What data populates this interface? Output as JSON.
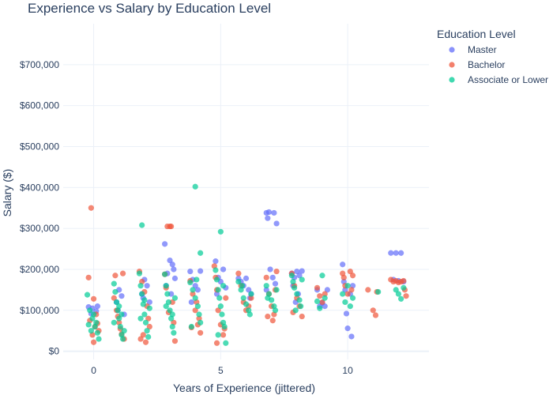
{
  "chart_data": {
    "type": "scatter",
    "title": "Experience vs Salary by Education Level",
    "xlabel": "Years of Experience (jittered)",
    "ylabel": "Salary ($)",
    "xlim": [
      -1.2,
      13.2
    ],
    "ylim": [
      -20000,
      800000
    ],
    "x_ticks": [
      0,
      5,
      10
    ],
    "x_tick_labels": [
      "0",
      "5",
      "10"
    ],
    "y_ticks": [
      0,
      100000,
      200000,
      300000,
      400000,
      500000,
      600000,
      700000
    ],
    "y_tick_labels": [
      "$0",
      "$100,000",
      "$200,000",
      "$300,000",
      "$400,000",
      "$500,000",
      "$600,000",
      "$700,000"
    ],
    "grid": true,
    "legend_title": "Education Level",
    "legend_position": "top-right",
    "series": [
      {
        "name": "Master",
        "color": "#636efa",
        "points": [
          [
            -0.2,
            108000
          ],
          [
            -0.05,
            105000
          ],
          [
            0.1,
            98000
          ],
          [
            0.15,
            110000
          ],
          [
            -0.1,
            92000
          ],
          [
            0.9,
            120000
          ],
          [
            1.1,
            135000
          ],
          [
            1.0,
            150000
          ],
          [
            0.95,
            100000
          ],
          [
            1.2,
            90000
          ],
          [
            1.9,
            140000
          ],
          [
            2.1,
            160000
          ],
          [
            2.0,
            175000
          ],
          [
            1.95,
            130000
          ],
          [
            2.2,
            120000
          ],
          [
            2.8,
            262000
          ],
          [
            3.0,
            222000
          ],
          [
            3.1,
            212000
          ],
          [
            2.9,
            190000
          ],
          [
            3.2,
            178000
          ],
          [
            2.85,
            160000
          ],
          [
            3.05,
            140000
          ],
          [
            3.15,
            200000
          ],
          [
            3.8,
            195000
          ],
          [
            3.9,
            175000
          ],
          [
            4.0,
            160000
          ],
          [
            4.1,
            150000
          ],
          [
            4.2,
            196000
          ],
          [
            3.85,
            120000
          ],
          [
            4.8,
            220000
          ],
          [
            4.9,
            180000
          ],
          [
            5.0,
            170000
          ],
          [
            5.1,
            200000
          ],
          [
            5.2,
            155000
          ],
          [
            4.85,
            140000
          ],
          [
            5.7,
            178000
          ],
          [
            5.8,
            170000
          ],
          [
            5.9,
            160000
          ],
          [
            6.0,
            178000
          ],
          [
            6.1,
            150000
          ],
          [
            6.2,
            140000
          ],
          [
            6.15,
            130000
          ],
          [
            6.8,
            338000
          ],
          [
            6.85,
            325000
          ],
          [
            6.9,
            340000
          ],
          [
            7.1,
            338000
          ],
          [
            7.2,
            312000
          ],
          [
            6.95,
            200000
          ],
          [
            7.05,
            180000
          ],
          [
            7.15,
            165000
          ],
          [
            6.8,
            150000
          ],
          [
            7.8,
            190000
          ],
          [
            7.9,
            180000
          ],
          [
            8.0,
            195000
          ],
          [
            8.1,
            185000
          ],
          [
            8.2,
            196000
          ],
          [
            7.85,
            160000
          ],
          [
            8.05,
            140000
          ],
          [
            7.95,
            120000
          ],
          [
            8.8,
            150000
          ],
          [
            8.9,
            110000
          ],
          [
            9.0,
            118000
          ],
          [
            9.1,
            110000
          ],
          [
            9.2,
            150000
          ],
          [
            9.8,
            212000
          ],
          [
            9.85,
            170000
          ],
          [
            9.9,
            150000
          ],
          [
            9.95,
            92000
          ],
          [
            10.0,
            56000
          ],
          [
            10.1,
            140000
          ],
          [
            10.15,
            36000
          ],
          [
            10.2,
            160000
          ],
          [
            11.7,
            240000
          ],
          [
            11.9,
            240000
          ],
          [
            12.1,
            240000
          ],
          [
            11.8,
            175000
          ],
          [
            12.0,
            172000
          ],
          [
            12.2,
            170000
          ]
        ]
      },
      {
        "name": "Bachelor",
        "color": "#ef553b",
        "points": [
          [
            -0.1,
            350000
          ],
          [
            -0.2,
            180000
          ],
          [
            0.0,
            128000
          ],
          [
            0.1,
            90000
          ],
          [
            -0.15,
            75000
          ],
          [
            0.05,
            60000
          ],
          [
            0.2,
            50000
          ],
          [
            -0.05,
            40000
          ],
          [
            0.0,
            22000
          ],
          [
            0.15,
            68000
          ],
          [
            0.8,
            130000
          ],
          [
            0.9,
            100000
          ],
          [
            1.0,
            70000
          ],
          [
            1.1,
            42000
          ],
          [
            1.2,
            30000
          ],
          [
            0.85,
            185000
          ],
          [
            1.15,
            190000
          ],
          [
            1.05,
            55000
          ],
          [
            0.95,
            85000
          ],
          [
            1.8,
            195000
          ],
          [
            1.9,
            170000
          ],
          [
            2.0,
            145000
          ],
          [
            2.1,
            110000
          ],
          [
            2.2,
            60000
          ],
          [
            1.85,
            30000
          ],
          [
            2.05,
            22000
          ],
          [
            2.15,
            80000
          ],
          [
            1.95,
            40000
          ],
          [
            2.8,
            188000
          ],
          [
            2.85,
            155000
          ],
          [
            2.9,
            305000
          ],
          [
            3.0,
            305000
          ],
          [
            3.05,
            305000
          ],
          [
            3.1,
            120000
          ],
          [
            3.15,
            70000
          ],
          [
            3.2,
            25000
          ],
          [
            2.95,
            95000
          ],
          [
            3.8,
            172000
          ],
          [
            3.9,
            140000
          ],
          [
            4.0,
            100000
          ],
          [
            4.1,
            65000
          ],
          [
            4.2,
            45000
          ],
          [
            3.85,
            58000
          ],
          [
            4.05,
            120000
          ],
          [
            4.15,
            80000
          ],
          [
            4.75,
            208000
          ],
          [
            4.8,
            180000
          ],
          [
            4.85,
            150000
          ],
          [
            4.9,
            100000
          ],
          [
            5.0,
            65000
          ],
          [
            5.1,
            40000
          ],
          [
            4.85,
            20000
          ],
          [
            5.2,
            130000
          ],
          [
            5.15,
            55000
          ],
          [
            5.7,
            190000
          ],
          [
            5.8,
            160000
          ],
          [
            5.9,
            120000
          ],
          [
            6.0,
            100000
          ],
          [
            6.1,
            110000
          ],
          [
            6.2,
            130000
          ],
          [
            6.8,
            180000
          ],
          [
            6.9,
            140000
          ],
          [
            7.0,
            110000
          ],
          [
            7.1,
            90000
          ],
          [
            7.2,
            195000
          ],
          [
            6.85,
            85000
          ],
          [
            7.05,
            75000
          ],
          [
            7.15,
            150000
          ],
          [
            7.8,
            190000
          ],
          [
            7.9,
            160000
          ],
          [
            8.0,
            130000
          ],
          [
            8.1,
            110000
          ],
          [
            8.2,
            85000
          ],
          [
            7.85,
            95000
          ],
          [
            8.8,
            155000
          ],
          [
            8.9,
            135000
          ],
          [
            9.0,
            120000
          ],
          [
            9.1,
            140000
          ],
          [
            9.8,
            190000
          ],
          [
            9.85,
            180000
          ],
          [
            9.9,
            160000
          ],
          [
            10.0,
            140000
          ],
          [
            10.1,
            195000
          ],
          [
            10.15,
            150000
          ],
          [
            10.2,
            185000
          ],
          [
            10.8,
            150000
          ],
          [
            11.0,
            100000
          ],
          [
            11.1,
            88000
          ],
          [
            11.15,
            145000
          ],
          [
            11.7,
            175000
          ],
          [
            11.8,
            170000
          ],
          [
            11.9,
            172000
          ],
          [
            12.0,
            168000
          ],
          [
            12.1,
            170000
          ],
          [
            12.2,
            172000
          ],
          [
            12.3,
            135000
          ],
          [
            12.25,
            150000
          ]
        ]
      },
      {
        "name": "Associate or Lower",
        "color": "#00cc96",
        "points": [
          [
            -0.25,
            138000
          ],
          [
            -0.15,
            100000
          ],
          [
            -0.05,
            80000
          ],
          [
            0.05,
            60000
          ],
          [
            0.15,
            45000
          ],
          [
            0.2,
            30000
          ],
          [
            -0.1,
            50000
          ],
          [
            0.1,
            70000
          ],
          [
            0.0,
            90000
          ],
          [
            -0.2,
            65000
          ],
          [
            0.8,
            165000
          ],
          [
            0.85,
            145000
          ],
          [
            0.9,
            120000
          ],
          [
            0.95,
            100000
          ],
          [
            1.0,
            80000
          ],
          [
            1.05,
            60000
          ],
          [
            1.1,
            40000
          ],
          [
            1.15,
            30000
          ],
          [
            1.2,
            50000
          ],
          [
            0.8,
            70000
          ],
          [
            1.0,
            110000
          ],
          [
            1.1,
            90000
          ],
          [
            1.9,
            308000
          ],
          [
            1.8,
            190000
          ],
          [
            1.85,
            160000
          ],
          [
            1.9,
            140000
          ],
          [
            1.95,
            115000
          ],
          [
            2.0,
            90000
          ],
          [
            2.05,
            70000
          ],
          [
            2.1,
            50000
          ],
          [
            2.15,
            35000
          ],
          [
            2.2,
            105000
          ],
          [
            1.85,
            80000
          ],
          [
            2.0,
            125000
          ],
          [
            2.8,
            188000
          ],
          [
            2.85,
            160000
          ],
          [
            2.9,
            140000
          ],
          [
            2.95,
            120000
          ],
          [
            3.0,
            100000
          ],
          [
            3.05,
            80000
          ],
          [
            3.1,
            60000
          ],
          [
            3.15,
            45000
          ],
          [
            3.2,
            130000
          ],
          [
            2.85,
            110000
          ],
          [
            3.1,
            90000
          ],
          [
            4.0,
            402000
          ],
          [
            4.2,
            240000
          ],
          [
            3.8,
            168000
          ],
          [
            3.9,
            150000
          ],
          [
            4.0,
            130000
          ],
          [
            4.1,
            110000
          ],
          [
            4.15,
            90000
          ],
          [
            4.2,
            70000
          ],
          [
            3.85,
            60000
          ],
          [
            4.05,
            175000
          ],
          [
            5.0,
            292000
          ],
          [
            4.8,
            198000
          ],
          [
            4.85,
            175000
          ],
          [
            4.9,
            150000
          ],
          [
            4.95,
            130000
          ],
          [
            5.0,
            110000
          ],
          [
            5.05,
            90000
          ],
          [
            5.1,
            70000
          ],
          [
            5.15,
            60000
          ],
          [
            5.2,
            20000
          ],
          [
            4.9,
            40000
          ],
          [
            5.1,
            160000
          ],
          [
            5.7,
            170000
          ],
          [
            5.8,
            150000
          ],
          [
            5.9,
            130000
          ],
          [
            6.0,
            115000
          ],
          [
            6.1,
            100000
          ],
          [
            6.15,
            90000
          ],
          [
            6.2,
            140000
          ],
          [
            5.85,
            160000
          ],
          [
            6.8,
            160000
          ],
          [
            6.9,
            140000
          ],
          [
            7.0,
            125000
          ],
          [
            7.1,
            110000
          ],
          [
            7.15,
            100000
          ],
          [
            7.2,
            150000
          ],
          [
            6.85,
            130000
          ],
          [
            7.8,
            185000
          ],
          [
            7.85,
            170000
          ],
          [
            7.9,
            155000
          ],
          [
            8.0,
            140000
          ],
          [
            8.1,
            125000
          ],
          [
            8.15,
            110000
          ],
          [
            8.2,
            175000
          ],
          [
            7.95,
            100000
          ],
          [
            8.8,
            122000
          ],
          [
            8.9,
            105000
          ],
          [
            9.0,
            185000
          ],
          [
            9.1,
            130000
          ],
          [
            9.8,
            140000
          ],
          [
            9.9,
            120000
          ],
          [
            10.0,
            160000
          ],
          [
            10.1,
            110000
          ],
          [
            10.2,
            130000
          ],
          [
            11.2,
            145000
          ],
          [
            12.0,
            140000
          ],
          [
            12.1,
            128000
          ],
          [
            11.9,
            150000
          ],
          [
            12.2,
            155000
          ]
        ]
      }
    ]
  }
}
